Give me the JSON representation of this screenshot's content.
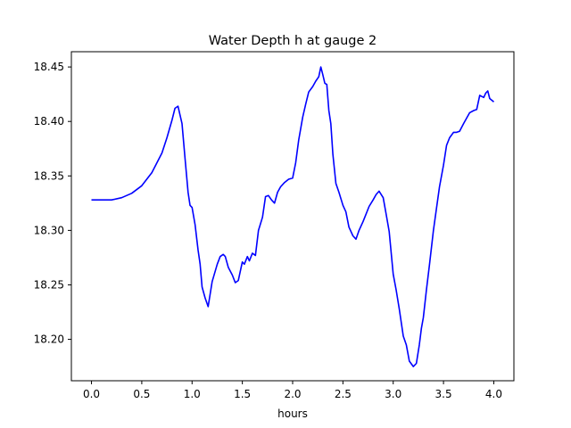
{
  "chart_data": {
    "type": "line",
    "title": "Water Depth h at gauge 2",
    "xlabel": "hours",
    "ylabel": "",
    "xlim": [
      -0.2,
      4.2
    ],
    "ylim": [
      18.162,
      18.464
    ],
    "xticks": [
      0.0,
      0.5,
      1.0,
      1.5,
      2.0,
      2.5,
      3.0,
      3.5,
      4.0
    ],
    "xtick_labels": [
      "0.0",
      "0.5",
      "1.0",
      "1.5",
      "2.0",
      "2.5",
      "3.0",
      "3.5",
      "4.0"
    ],
    "yticks": [
      18.2,
      18.25,
      18.3,
      18.35,
      18.4,
      18.45
    ],
    "ytick_labels": [
      "18.20",
      "18.25",
      "18.30",
      "18.35",
      "18.40",
      "18.45"
    ],
    "grid": false,
    "series": [
      {
        "color": "#0000ff",
        "x": [
          0.0,
          0.1,
          0.2,
          0.3,
          0.4,
          0.5,
          0.6,
          0.7,
          0.75,
          0.8,
          0.83,
          0.86,
          0.9,
          0.93,
          0.96,
          0.98,
          1.0,
          1.03,
          1.06,
          1.08,
          1.1,
          1.13,
          1.16,
          1.2,
          1.25,
          1.28,
          1.31,
          1.33,
          1.36,
          1.4,
          1.43,
          1.46,
          1.5,
          1.52,
          1.55,
          1.57,
          1.6,
          1.63,
          1.66,
          1.7,
          1.73,
          1.76,
          1.79,
          1.82,
          1.85,
          1.88,
          1.92,
          1.96,
          2.0,
          2.03,
          2.06,
          2.1,
          2.13,
          2.16,
          2.2,
          2.23,
          2.26,
          2.28,
          2.3,
          2.32,
          2.34,
          2.36,
          2.38,
          2.4,
          2.43,
          2.46,
          2.5,
          2.53,
          2.56,
          2.6,
          2.63,
          2.66,
          2.7,
          2.73,
          2.76,
          2.8,
          2.83,
          2.86,
          2.9,
          2.93,
          2.96,
          3.0,
          3.03,
          3.06,
          3.1,
          3.13,
          3.16,
          3.2,
          3.23,
          3.26,
          3.28,
          3.3,
          3.33,
          3.36,
          3.4,
          3.43,
          3.46,
          3.5,
          3.53,
          3.56,
          3.6,
          3.63,
          3.66,
          3.7,
          3.73,
          3.76,
          3.8,
          3.83,
          3.86,
          3.9,
          3.92,
          3.94,
          3.96,
          4.0
        ],
        "y": [
          18.328,
          18.328,
          18.328,
          18.33,
          18.334,
          18.341,
          18.353,
          18.371,
          18.385,
          18.401,
          18.412,
          18.414,
          18.398,
          18.366,
          18.335,
          18.323,
          18.321,
          18.305,
          18.282,
          18.269,
          18.248,
          18.238,
          18.23,
          18.253,
          18.269,
          18.276,
          18.278,
          18.276,
          18.266,
          18.259,
          18.252,
          18.254,
          18.271,
          18.269,
          18.276,
          18.272,
          18.279,
          18.277,
          18.3,
          18.312,
          18.331,
          18.332,
          18.328,
          18.325,
          18.335,
          18.34,
          18.344,
          18.347,
          18.348,
          18.362,
          18.383,
          18.404,
          18.416,
          18.427,
          18.432,
          18.437,
          18.441,
          18.45,
          18.443,
          18.435,
          18.434,
          18.41,
          18.398,
          18.37,
          18.343,
          18.335,
          18.323,
          18.317,
          18.303,
          18.295,
          18.292,
          18.3,
          18.308,
          18.315,
          18.322,
          18.328,
          18.333,
          18.336,
          18.33,
          18.315,
          18.299,
          18.26,
          18.245,
          18.228,
          18.203,
          18.195,
          18.18,
          18.175,
          18.178,
          18.195,
          18.21,
          18.22,
          18.245,
          18.268,
          18.3,
          18.32,
          18.34,
          18.36,
          18.378,
          18.385,
          18.39,
          18.39,
          18.391,
          18.398,
          18.403,
          18.408,
          18.41,
          18.411,
          18.424,
          18.422,
          18.426,
          18.428,
          18.421,
          18.418
        ]
      }
    ]
  }
}
